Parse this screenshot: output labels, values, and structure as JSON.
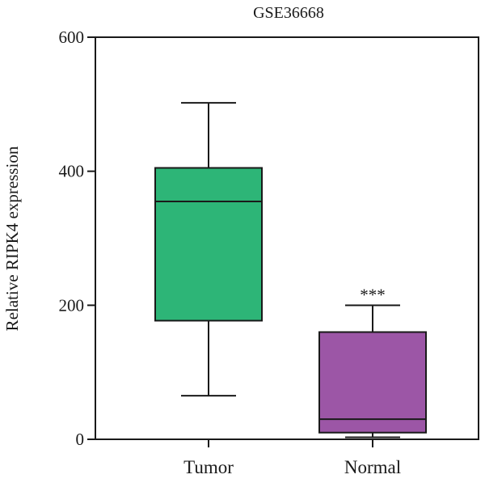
{
  "chart_data": {
    "type": "box",
    "title": "GSE36668",
    "ylabel": "Relative RIPK4 expression",
    "xlabel": "",
    "ylim": [
      0,
      600
    ],
    "yticks": [
      0,
      200,
      400,
      600
    ],
    "grid": false,
    "legend": "none",
    "categories": [
      "Tumor",
      "Normal"
    ],
    "boxes": [
      {
        "category": "Tumor",
        "min": 65,
        "q1": 177,
        "median": 355,
        "q3": 405,
        "max": 502,
        "color": "#2db577"
      },
      {
        "category": "Normal",
        "min": 3,
        "q1": 10,
        "median": 30,
        "q3": 160,
        "max": 200,
        "color": "#9c56a6",
        "annotation": "***"
      }
    ]
  }
}
